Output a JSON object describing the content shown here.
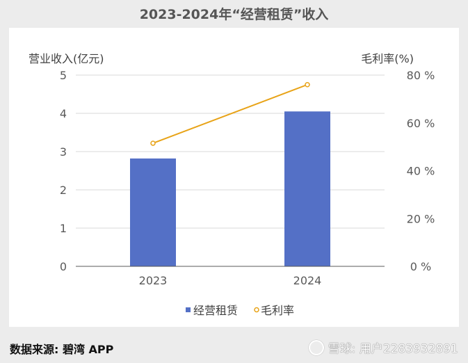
{
  "chart_data": {
    "type": "bar",
    "title": "2023-2024年“经营租赁”收入",
    "categories": [
      "2023",
      "2024"
    ],
    "series": [
      {
        "name": "经营租赁",
        "type": "bar",
        "axis": "left",
        "color": "#5470C6",
        "values": [
          2.82,
          4.05
        ]
      },
      {
        "name": "毛利率",
        "type": "line",
        "axis": "right",
        "color": "#E8A317",
        "values": [
          51.5,
          76
        ]
      }
    ],
    "ylabel": "营业收入(亿元)",
    "y2label": "毛利率(%)",
    "ylim": [
      0,
      5
    ],
    "y2lim": [
      0,
      80
    ],
    "yticks": [
      "0",
      "1",
      "2",
      "3",
      "4",
      "5"
    ],
    "y2ticks": [
      "0 %",
      "20 %",
      "40 %",
      "60 %",
      "80 %"
    ],
    "grid": true,
    "legend_position": "bottom"
  },
  "footer": {
    "source": "数据来源: 碧湾 APP",
    "watermark": "雪球: 用户2283932891"
  }
}
